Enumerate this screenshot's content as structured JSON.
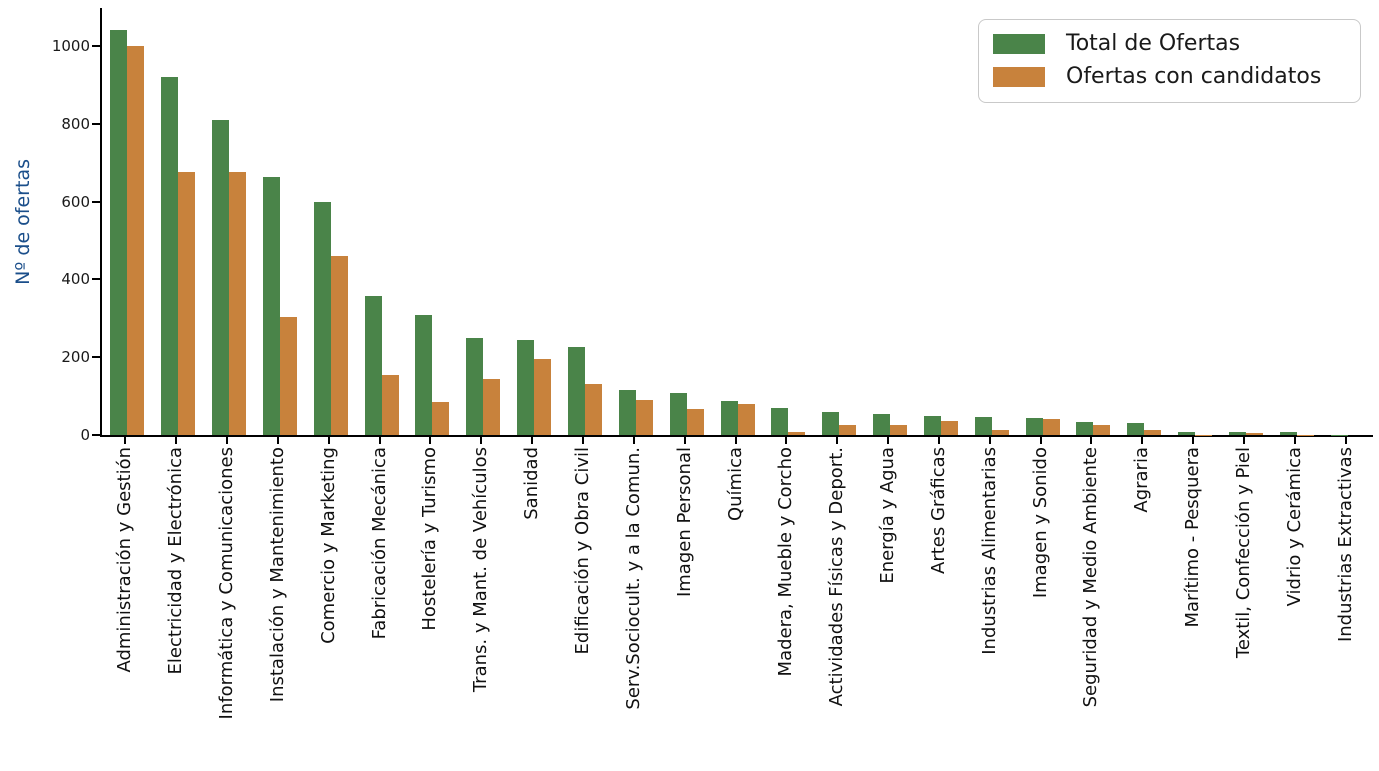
{
  "chart_data": {
    "type": "bar",
    "title": "",
    "xlabel": "",
    "ylabel": "Nº de ofertas",
    "ylabel_color": "#1a4e8a",
    "ylim": [
      0,
      1090
    ],
    "yticks": [
      0,
      200,
      400,
      600,
      800,
      1000
    ],
    "grid": false,
    "legend_position": "upper right",
    "categories": [
      "Administración y Gestión",
      "Electricidad y Electrónica",
      "Informática y Comunicaciones",
      "Instalación y Mantenimiento",
      "Comercio y Marketing",
      "Fabricación Mecánica",
      "Hostelería y Turismo",
      "Trans. y Mant. de Vehículos",
      "Sanidad",
      "Edificación y Obra Civil",
      "Serv.Sociocult. y a la Comun.",
      "Imagen Personal",
      "Química",
      "Madera, Mueble y Corcho",
      "Actividades Físicas y Deport.",
      "Energía y Agua",
      "Artes Gráficas",
      "Industrias Alimentarias",
      "Imagen y Sonido",
      "Seguridad y Medio Ambiente",
      "Agraria",
      "Marítimo - Pesquera",
      "Textil, Confección y Piel",
      "Vidrio y Cerámica",
      "Industrias Extractivas"
    ],
    "series": [
      {
        "name": "Total de Ofertas",
        "color": "#4a8449",
        "values": [
          1040,
          920,
          810,
          663,
          598,
          357,
          308,
          250,
          243,
          225,
          115,
          108,
          88,
          70,
          60,
          53,
          50,
          47,
          45,
          33,
          30,
          8,
          8,
          8,
          1
        ]
      },
      {
        "name": "Ofertas con candidatos",
        "color": "#c8823c",
        "values": [
          1000,
          675,
          675,
          303,
          461,
          153,
          84,
          143,
          195,
          130,
          89,
          66,
          81,
          7,
          25,
          25,
          35,
          14,
          42,
          25,
          14,
          1,
          5,
          1,
          0
        ]
      }
    ]
  }
}
